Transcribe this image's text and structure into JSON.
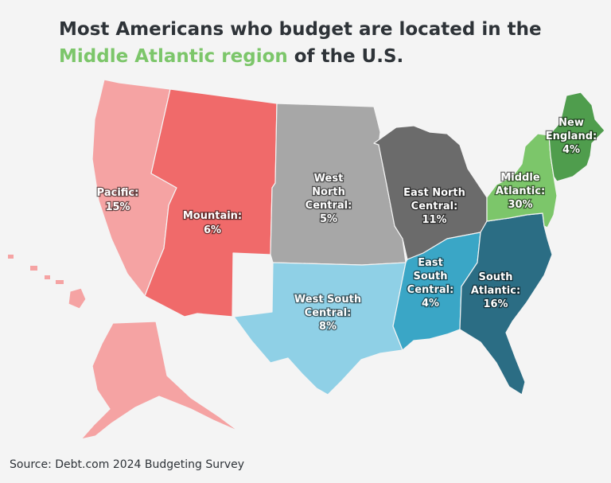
{
  "title": {
    "line1": "Most Americans who budget are located in the",
    "highlight": "Middle Atlantic region",
    "line2_rest": " of the U.S."
  },
  "colors": {
    "highlight": "#7cc66a",
    "pacific": "#f5a3a3",
    "mountain": "#f06a6a",
    "west_north_central": "#a7a7a7",
    "east_north_central": "#6b6b6b",
    "west_south_central": "#8fd0e6",
    "east_south_central": "#3aa6c6",
    "south_atlantic": "#2b6d84",
    "middle_atlantic": "#7cc66a",
    "new_england": "#4f9d4d"
  },
  "regions": {
    "pacific": {
      "name": "Pacific:",
      "value": "15%"
    },
    "mountain": {
      "name": "Mountain:",
      "value": "6%"
    },
    "west_north_central": {
      "name1": "West",
      "name2": "North",
      "name3": "Central:",
      "value": "5%"
    },
    "east_north_central": {
      "name1": "East North",
      "name2": "Central:",
      "value": "11%"
    },
    "west_south_central": {
      "name1": "West South",
      "name2": "Central:",
      "value": "8%"
    },
    "east_south_central": {
      "name1": "East",
      "name2": "South",
      "name3": "Central:",
      "value": "4%"
    },
    "south_atlantic": {
      "name1": "South",
      "name2": "Atlantic:",
      "value": "16%"
    },
    "middle_atlantic": {
      "name1": "Middle",
      "name2": "Atlantic:",
      "value": "30%"
    },
    "new_england": {
      "name1": "New",
      "name2": "England:",
      "value": "4%"
    }
  },
  "source": "Source: Debt.com 2024 Budgeting Survey"
}
